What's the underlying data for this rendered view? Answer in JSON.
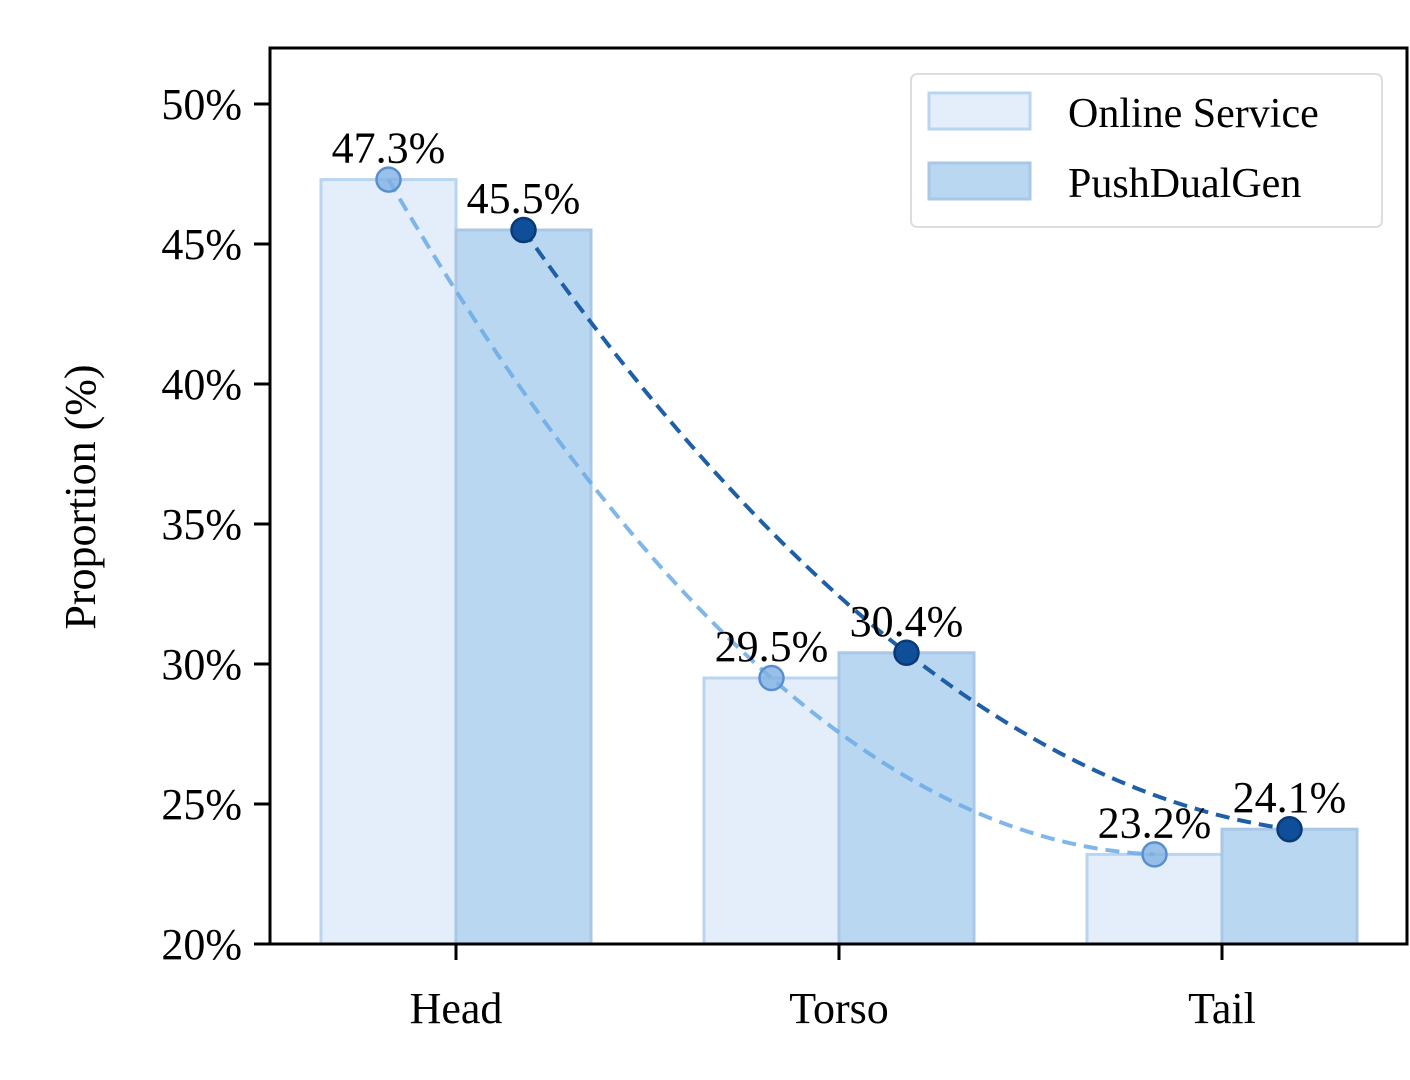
{
  "chart_data": {
    "type": "bar",
    "title": "",
    "xlabel": "",
    "ylabel": "Proportion (%)",
    "ylim": [
      20,
      52
    ],
    "yticks": [
      20,
      25,
      30,
      35,
      40,
      45,
      50
    ],
    "ytick_labels": [
      "20%",
      "25%",
      "30%",
      "35%",
      "40%",
      "45%",
      "50%"
    ],
    "categories": [
      "Head",
      "Torso",
      "Tail"
    ],
    "series": [
      {
        "name": "Online Service",
        "values": [
          47.3,
          29.5,
          23.2
        ],
        "labels": [
          "47.3%",
          "29.5%",
          "23.2%"
        ],
        "fill": "#e4eefa",
        "edge": "#b9d5f2",
        "line_color": "#6aaae6",
        "marker_color": "#7fb0e2"
      },
      {
        "name": "PushDualGen",
        "values": [
          45.5,
          30.4,
          24.1
        ],
        "labels": [
          "45.5%",
          "30.4%",
          "24.1%"
        ],
        "fill": "#bad7f2",
        "edge": "#a9c7e6",
        "line_color": "#1f5fa8",
        "marker_color": "#0f4f99"
      }
    ],
    "trend_lines": "dashed",
    "grid": false,
    "legend": "top-right"
  }
}
